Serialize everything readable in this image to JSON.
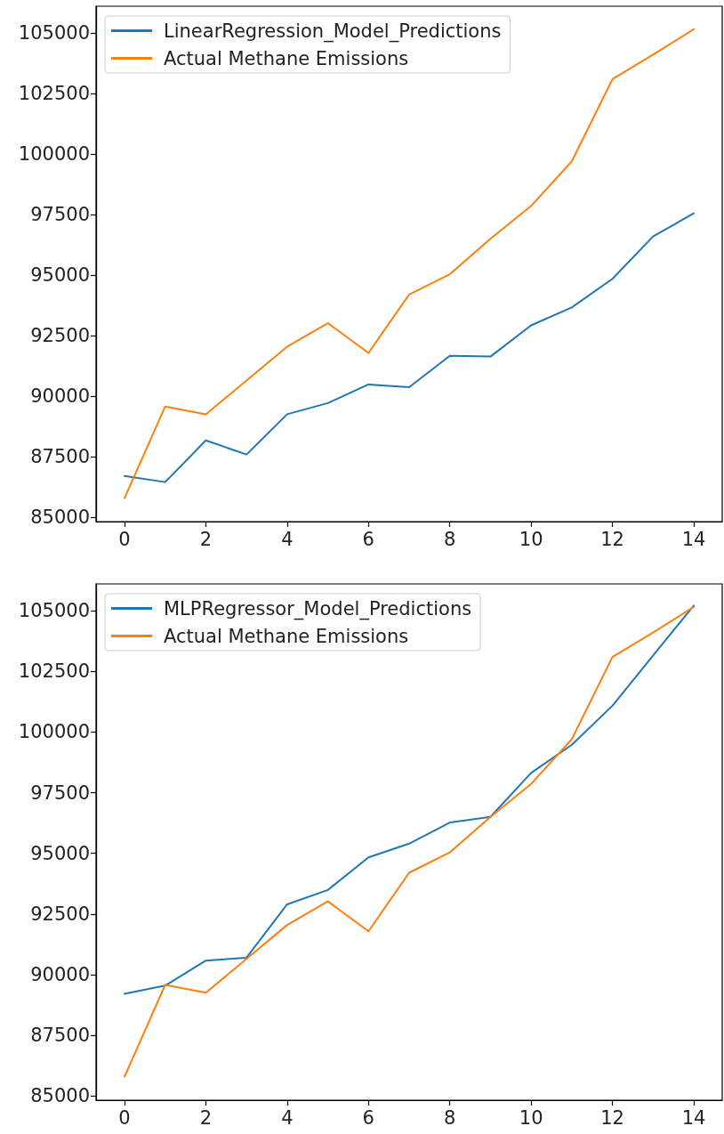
{
  "chart_data": [
    {
      "type": "line",
      "x": [
        0,
        1,
        2,
        3,
        4,
        5,
        6,
        7,
        8,
        9,
        10,
        11,
        12,
        13,
        14
      ],
      "xlim": [
        -0.7,
        14.7
      ],
      "xticks": [
        0,
        2,
        4,
        6,
        8,
        10,
        12,
        14
      ],
      "ylim": [
        84830,
        106100
      ],
      "yticks": [
        85000,
        87500,
        90000,
        92500,
        95000,
        97500,
        100000,
        102500,
        105000
      ],
      "grid": false,
      "legend": "top left",
      "series": [
        {
          "name": "LinearRegression_Model_Predictions",
          "color": "#1f77b4",
          "values": [
            86710,
            86460,
            88180,
            87600,
            89260,
            89720,
            90490,
            90380,
            91670,
            91640,
            92930,
            93670,
            94850,
            96600,
            97550
          ]
        },
        {
          "name": "Actual Methane Emissions",
          "color": "#ff7f0e",
          "values": [
            85800,
            89580,
            89260,
            90650,
            92050,
            93020,
            91790,
            94200,
            95040,
            96500,
            97860,
            99700,
            103090,
            104100,
            105150
          ]
        }
      ]
    },
    {
      "type": "line",
      "x": [
        0,
        1,
        2,
        3,
        4,
        5,
        6,
        7,
        8,
        9,
        10,
        11,
        12,
        13,
        14
      ],
      "xlim": [
        -0.7,
        14.7
      ],
      "xticks": [
        0,
        2,
        4,
        6,
        8,
        10,
        12,
        14
      ],
      "ylim": [
        84830,
        106100
      ],
      "yticks": [
        85000,
        87500,
        90000,
        92500,
        95000,
        97500,
        100000,
        102500,
        105000
      ],
      "grid": false,
      "legend": "top left",
      "series": [
        {
          "name": "MLPRegressor_Model_Predictions",
          "color": "#1f77b4",
          "values": [
            89210,
            89550,
            90580,
            90700,
            92900,
            93490,
            94830,
            95400,
            96270,
            96500,
            98310,
            99470,
            101080,
            103150,
            105210
          ]
        },
        {
          "name": "Actual Methane Emissions",
          "color": "#ff7f0e",
          "values": [
            85800,
            89580,
            89260,
            90650,
            92050,
            93020,
            91790,
            94200,
            95040,
            96500,
            97860,
            99700,
            103090,
            104100,
            105150
          ]
        }
      ]
    }
  ]
}
